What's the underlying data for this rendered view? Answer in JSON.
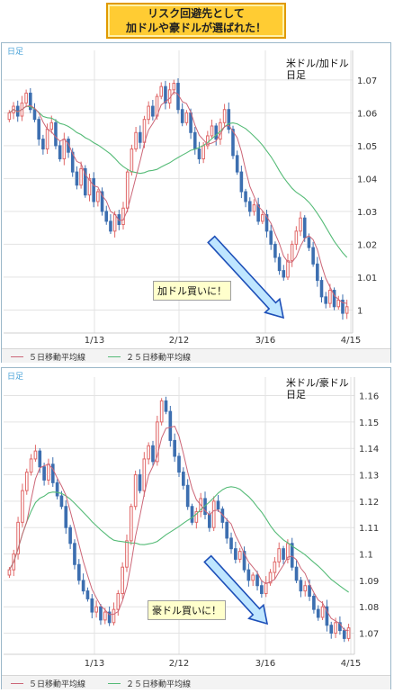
{
  "title": {
    "line1": "リスク回避先として",
    "line2": "加ドルや豪ドルが選ばれた！"
  },
  "chart_data": [
    {
      "type": "candlestick",
      "panel_label": "日足",
      "pair_label_line1": "米ドル/加ドル",
      "pair_label_line2": "日足",
      "annotation": "加ドル買いに！",
      "y_ticks": [
        "1.07",
        "1.06",
        "1.05",
        "1.04",
        "1.03",
        "1.02",
        "1.01",
        "1"
      ],
      "x_ticks": [
        "1/13",
        "2/12",
        "3/16",
        "4/15"
      ],
      "ylim": [
        0.993,
        1.079
      ],
      "legend": [
        "５日移動平均線",
        "２５日移動平均線"
      ],
      "series_colors": {
        "up": "#e06868",
        "down": "#3d6fb0",
        "ma5": "#cc6677",
        "ma25": "#55bb77"
      },
      "closes": [
        1.06,
        1.062,
        1.059,
        1.063,
        1.066,
        1.061,
        1.058,
        1.052,
        1.049,
        1.055,
        1.057,
        1.05,
        1.046,
        1.052,
        1.048,
        1.042,
        1.038,
        1.043,
        1.035,
        1.04,
        1.033,
        1.036,
        1.03,
        1.027,
        1.024,
        1.029,
        1.026,
        1.031,
        1.042,
        1.049,
        1.054,
        1.051,
        1.058,
        1.062,
        1.059,
        1.065,
        1.068,
        1.063,
        1.067,
        1.069,
        1.061,
        1.057,
        1.06,
        1.054,
        1.049,
        1.046,
        1.05,
        1.053,
        1.056,
        1.052,
        1.057,
        1.061,
        1.055,
        1.047,
        1.042,
        1.036,
        1.033,
        1.03,
        1.032,
        1.027,
        1.029,
        1.024,
        1.02,
        1.016,
        1.012,
        1.01,
        1.015,
        1.02,
        1.024,
        1.028,
        1.022,
        1.019,
        1.014,
        1.009,
        1.004,
        1.002,
        1.006,
        1.001,
        1.003,
        0.999,
        1.001
      ]
    },
    {
      "type": "candlestick",
      "panel_label": "日足",
      "pair_label_line1": "米ドル/豪ドル",
      "pair_label_line2": "日足",
      "annotation": "豪ドル買いに！",
      "y_ticks": [
        "1.16",
        "1.15",
        "1.14",
        "1.13",
        "1.12",
        "1.11",
        "1.1",
        "1.09",
        "1.08",
        "1.07"
      ],
      "x_ticks": [
        "1/13",
        "2/12",
        "3/16",
        "4/15"
      ],
      "ylim": [
        1.062,
        1.167
      ],
      "legend": [
        "５日移動平均線",
        "２５日移動平均線"
      ],
      "series_colors": {
        "up": "#e06868",
        "down": "#3d6fb0",
        "ma5": "#cc6677",
        "ma25": "#55bb77"
      },
      "closes": [
        1.094,
        1.1,
        1.112,
        1.124,
        1.131,
        1.136,
        1.139,
        1.133,
        1.128,
        1.134,
        1.127,
        1.122,
        1.118,
        1.11,
        1.104,
        1.096,
        1.09,
        1.086,
        1.083,
        1.078,
        1.08,
        1.075,
        1.078,
        1.074,
        1.079,
        1.085,
        1.095,
        1.105,
        1.118,
        1.13,
        1.124,
        1.136,
        1.141,
        1.135,
        1.15,
        1.158,
        1.154,
        1.143,
        1.137,
        1.131,
        1.126,
        1.118,
        1.112,
        1.116,
        1.121,
        1.115,
        1.11,
        1.12,
        1.117,
        1.112,
        1.106,
        1.102,
        1.098,
        1.101,
        1.094,
        1.09,
        1.092,
        1.088,
        1.085,
        1.089,
        1.093,
        1.097,
        1.102,
        1.098,
        1.104,
        1.095,
        1.09,
        1.086,
        1.088,
        1.084,
        1.079,
        1.076,
        1.08,
        1.073,
        1.07,
        1.074,
        1.071,
        1.068,
        1.072
      ]
    }
  ]
}
